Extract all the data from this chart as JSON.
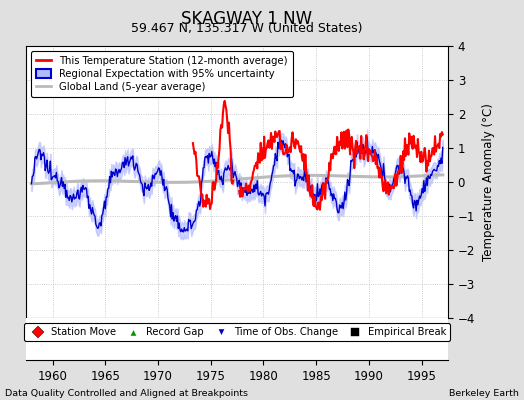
{
  "title": "SKAGWAY 1 NW",
  "subtitle": "59.467 N, 135.317 W (United States)",
  "ylabel": "Temperature Anomaly (°C)",
  "xlim": [
    1957.5,
    1997.5
  ],
  "ylim": [
    -4,
    4
  ],
  "yticks": [
    -4,
    -3,
    -2,
    -1,
    0,
    1,
    2,
    3,
    4
  ],
  "xticks": [
    1960,
    1965,
    1970,
    1975,
    1980,
    1985,
    1990,
    1995
  ],
  "background_color": "#e0e0e0",
  "plot_bg_color": "#ffffff",
  "station_color": "#ff0000",
  "regional_color": "#0000cc",
  "regional_fill_color": "#b0b8ff",
  "global_color": "#bbbbbb",
  "footer_left": "Data Quality Controlled and Aligned at Breakpoints",
  "footer_right": "Berkeley Earth",
  "legend_items": [
    {
      "label": "This Temperature Station (12-month average)",
      "color": "#ff0000",
      "lw": 2
    },
    {
      "label": "Regional Expectation with 95% uncertainty",
      "color": "#0000cc",
      "lw": 2
    },
    {
      "label": "Global Land (5-year average)",
      "color": "#bbbbbb",
      "lw": 2
    }
  ],
  "bottom_legend": [
    {
      "label": "Station Move",
      "marker": "D",
      "color": "#ff0000"
    },
    {
      "label": "Record Gap",
      "marker": "^",
      "color": "#009900"
    },
    {
      "label": "Time of Obs. Change",
      "marker": "v",
      "color": "#0000cc"
    },
    {
      "label": "Empirical Break",
      "marker": "s",
      "color": "#000000"
    }
  ]
}
